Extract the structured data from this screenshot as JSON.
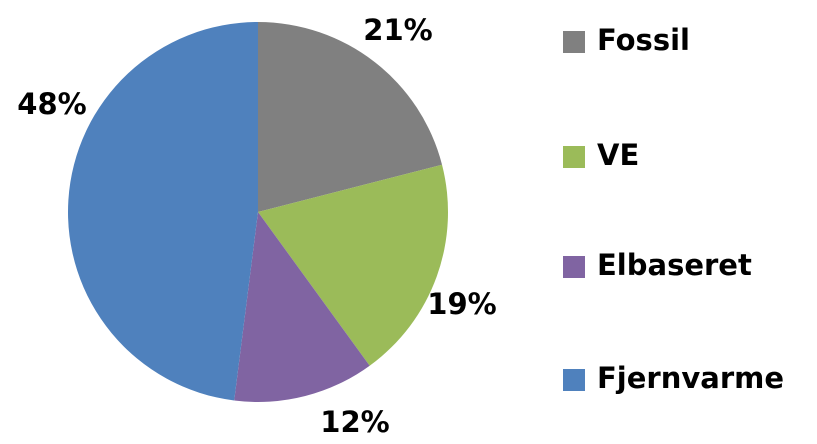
{
  "chart_data": {
    "type": "pie",
    "categories": [
      "Fossil",
      "VE",
      "Elbaseret",
      "Fjernvarme"
    ],
    "values": [
      21,
      19,
      12,
      48
    ],
    "value_labels": [
      "21%",
      "19%",
      "12%",
      "48%"
    ],
    "colors": [
      "#808080",
      "#9bbb59",
      "#8064a2",
      "#4f81bd"
    ],
    "legend": "right"
  }
}
